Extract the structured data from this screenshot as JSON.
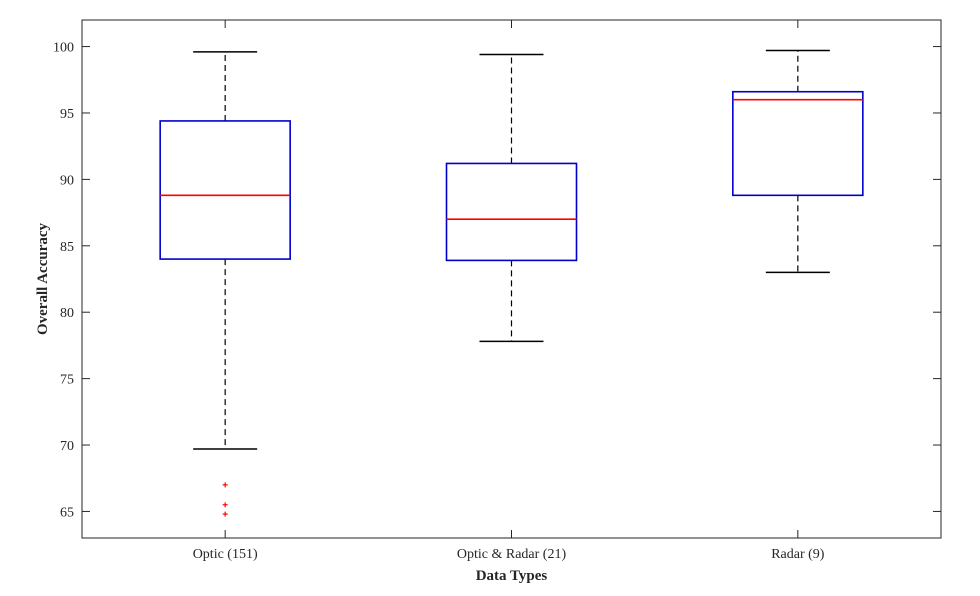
{
  "chart_data": {
    "type": "box",
    "title": "",
    "xlabel": "Data Types",
    "ylabel": "Overall Accuracy",
    "ylim": [
      63,
      102
    ],
    "yticks": [
      65,
      70,
      75,
      80,
      85,
      90,
      95,
      100
    ],
    "grid": false,
    "categories": [
      "Optic (151)",
      "Optic & Radar (21)",
      "Radar (9)"
    ],
    "boxes": [
      {
        "category": "Optic (151)",
        "whisker_low": 69.7,
        "q1": 84.0,
        "median": 88.8,
        "q3": 94.4,
        "whisker_high": 99.6,
        "outliers": [
          67.0,
          65.5,
          64.8
        ]
      },
      {
        "category": "Optic & Radar (21)",
        "whisker_low": 77.8,
        "q1": 83.9,
        "median": 87.0,
        "q3": 91.2,
        "whisker_high": 99.4,
        "outliers": []
      },
      {
        "category": "Radar (9)",
        "whisker_low": 83.0,
        "q1": 88.8,
        "median": 96.0,
        "q3": 96.6,
        "whisker_high": 99.7,
        "outliers": []
      }
    ],
    "colors": {
      "box": "#0000cc",
      "median": "#ff0000",
      "whisker": "#000000",
      "outlier": "#ff0000",
      "axis": "#262626"
    }
  }
}
